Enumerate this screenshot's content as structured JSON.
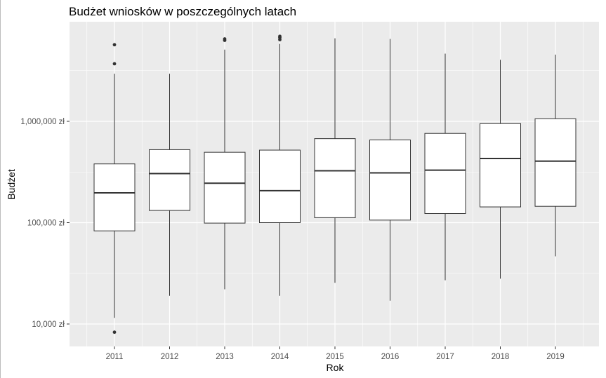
{
  "chart_data": {
    "type": "boxplot",
    "title": "Budżet wniosków w poszczególnych latach",
    "xlabel": "Rok",
    "ylabel": "Budżet",
    "y_scale": "log10",
    "ylim": [
      6000,
      9000000
    ],
    "y_ticks": [
      {
        "value": 10000,
        "label": "10,000 zł"
      },
      {
        "value": 100000,
        "label": "100,000 zł"
      },
      {
        "value": 1000000,
        "label": "1,000,000 zł"
      }
    ],
    "categories": [
      "2011",
      "2012",
      "2013",
      "2014",
      "2015",
      "2016",
      "2017",
      "2018",
      "2019"
    ],
    "boxes": [
      {
        "year": "2011",
        "whisker_low": 11500,
        "q1": 83000,
        "median": 197000,
        "q3": 380000,
        "whisker_high": 2950000,
        "outliers": [
          8300,
          3700000,
          5700000
        ]
      },
      {
        "year": "2012",
        "whisker_low": 19000,
        "q1": 132000,
        "median": 305000,
        "q3": 525000,
        "whisker_high": 2950000,
        "outliers": []
      },
      {
        "year": "2013",
        "whisker_low": 22000,
        "q1": 99000,
        "median": 245000,
        "q3": 495000,
        "whisker_high": 5100000,
        "outliers": [
          6300000,
          6500000
        ]
      },
      {
        "year": "2014",
        "whisker_low": 19000,
        "q1": 100000,
        "median": 207000,
        "q3": 520000,
        "whisker_high": 5800000,
        "outliers": [
          6400000,
          6700000,
          6900000
        ]
      },
      {
        "year": "2015",
        "whisker_low": 25500,
        "q1": 112000,
        "median": 325000,
        "q3": 675000,
        "whisker_high": 6600000,
        "outliers": []
      },
      {
        "year": "2016",
        "whisker_low": 17000,
        "q1": 106000,
        "median": 310000,
        "q3": 655000,
        "whisker_high": 6500000,
        "outliers": []
      },
      {
        "year": "2017",
        "whisker_low": 27000,
        "q1": 123000,
        "median": 330000,
        "q3": 760000,
        "whisker_high": 4650000,
        "outliers": []
      },
      {
        "year": "2018",
        "whisker_low": 28000,
        "q1": 143000,
        "median": 430000,
        "q3": 950000,
        "whisker_high": 4050000,
        "outliers": []
      },
      {
        "year": "2019",
        "whisker_low": 46500,
        "q1": 145000,
        "median": 405000,
        "q3": 1060000,
        "whisker_high": 4550000,
        "outliers": []
      }
    ],
    "grid": true,
    "legend": "none",
    "colors": {
      "panel_background": "#ebebeb",
      "gridline": "#ffffff",
      "box_fill": "#ffffff",
      "box_stroke": "#333333",
      "outlier": "#333333",
      "tick_label": "#4d4d4d"
    }
  }
}
